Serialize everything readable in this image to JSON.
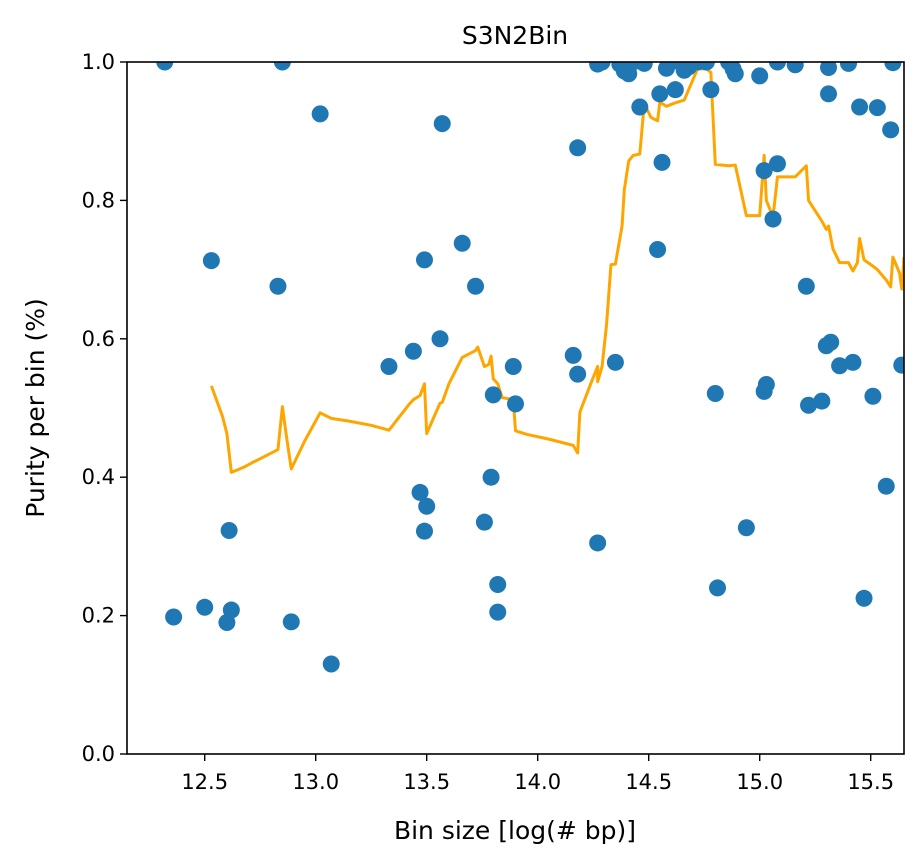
{
  "chart_data": {
    "type": "scatter",
    "title": "S3N2Bin",
    "xlabel": "Bin size [log(# bp)]",
    "ylabel": "Purity per bin (%)",
    "xlim": [
      12.15,
      15.65
    ],
    "ylim": [
      0.0,
      1.0
    ],
    "xticks": [
      12.5,
      13.0,
      13.5,
      14.0,
      14.5,
      15.0,
      15.5
    ],
    "xtick_labels": [
      "12.5",
      "13.0",
      "13.5",
      "14.0",
      "14.5",
      "15.0",
      "15.5"
    ],
    "yticks": [
      0.0,
      0.2,
      0.4,
      0.6,
      0.8,
      1.0
    ],
    "ytick_labels": [
      "0.0",
      "0.2",
      "0.4",
      "0.6",
      "0.8",
      "1.0"
    ],
    "grid": false,
    "colors": {
      "points": "#1f77b4",
      "line": "#ffa500"
    },
    "series": [
      {
        "kind": "scatter",
        "points": [
          [
            12.32,
            1.0
          ],
          [
            12.36,
            0.198
          ],
          [
            12.5,
            0.212
          ],
          [
            12.53,
            0.713
          ],
          [
            12.6,
            0.19
          ],
          [
            12.61,
            0.323
          ],
          [
            12.62,
            0.208
          ],
          [
            12.83,
            0.676
          ],
          [
            12.85,
            1.0
          ],
          [
            12.89,
            0.191
          ],
          [
            13.02,
            0.925
          ],
          [
            13.07,
            0.13
          ],
          [
            13.33,
            0.56
          ],
          [
            13.44,
            0.582
          ],
          [
            13.47,
            0.378
          ],
          [
            13.49,
            0.322
          ],
          [
            13.49,
            0.714
          ],
          [
            13.5,
            0.358
          ],
          [
            13.56,
            0.6
          ],
          [
            13.57,
            0.911
          ],
          [
            13.66,
            0.738
          ],
          [
            13.72,
            0.676
          ],
          [
            13.76,
            0.335
          ],
          [
            13.79,
            0.4
          ],
          [
            13.8,
            0.519
          ],
          [
            13.82,
            0.245
          ],
          [
            13.82,
            0.205
          ],
          [
            13.89,
            0.56
          ],
          [
            13.9,
            0.506
          ],
          [
            14.16,
            0.576
          ],
          [
            14.18,
            0.549
          ],
          [
            14.18,
            0.876
          ],
          [
            14.27,
            0.305
          ],
          [
            14.27,
            0.997
          ],
          [
            14.29,
            1.0
          ],
          [
            14.35,
            0.566
          ],
          [
            14.37,
            0.997
          ],
          [
            14.39,
            0.987
          ],
          [
            14.41,
            0.983
          ],
          [
            14.43,
            1.0
          ],
          [
            14.46,
            0.935
          ],
          [
            14.48,
            0.998
          ],
          [
            14.54,
            0.729
          ],
          [
            14.55,
            0.954
          ],
          [
            14.56,
            0.855
          ],
          [
            14.58,
            0.991
          ],
          [
            14.62,
            0.96
          ],
          [
            14.64,
            1.0
          ],
          [
            14.66,
            0.988
          ],
          [
            14.68,
            0.993
          ],
          [
            14.72,
            1.0
          ],
          [
            14.76,
            1.0
          ],
          [
            14.78,
            0.96
          ],
          [
            14.8,
            0.521
          ],
          [
            14.81,
            0.24
          ],
          [
            14.86,
            1.0
          ],
          [
            14.88,
            0.99
          ],
          [
            14.89,
            0.983
          ],
          [
            14.94,
            0.327
          ],
          [
            15.0,
            0.98
          ],
          [
            15.02,
            0.843
          ],
          [
            15.02,
            0.524
          ],
          [
            15.03,
            0.534
          ],
          [
            15.06,
            0.773
          ],
          [
            15.08,
            0.853
          ],
          [
            15.08,
            1.0
          ],
          [
            15.16,
            0.996
          ],
          [
            15.21,
            0.676
          ],
          [
            15.22,
            0.504
          ],
          [
            15.28,
            0.51
          ],
          [
            15.3,
            0.59
          ],
          [
            15.31,
            0.992
          ],
          [
            15.31,
            0.954
          ],
          [
            15.32,
            0.595
          ],
          [
            15.36,
            0.561
          ],
          [
            15.4,
            0.998
          ],
          [
            15.42,
            0.566
          ],
          [
            15.45,
            0.935
          ],
          [
            15.47,
            0.225
          ],
          [
            15.51,
            0.517
          ],
          [
            15.53,
            0.934
          ],
          [
            15.57,
            0.387
          ],
          [
            15.59,
            0.902
          ],
          [
            15.6,
            0.999
          ],
          [
            15.64,
            0.562
          ]
        ]
      },
      {
        "kind": "line",
        "points": [
          [
            12.53,
            0.532
          ],
          [
            12.58,
            0.488
          ],
          [
            12.6,
            0.463
          ],
          [
            12.62,
            0.407
          ],
          [
            12.65,
            0.411
          ],
          [
            12.68,
            0.415
          ],
          [
            12.72,
            0.422
          ],
          [
            12.77,
            0.43
          ],
          [
            12.83,
            0.44
          ],
          [
            12.85,
            0.502
          ],
          [
            12.87,
            0.455
          ],
          [
            12.89,
            0.412
          ],
          [
            12.95,
            0.452
          ],
          [
            13.02,
            0.493
          ],
          [
            13.07,
            0.485
          ],
          [
            13.15,
            0.481
          ],
          [
            13.25,
            0.475
          ],
          [
            13.33,
            0.468
          ],
          [
            13.42,
            0.505
          ],
          [
            13.44,
            0.512
          ],
          [
            13.47,
            0.518
          ],
          [
            13.49,
            0.535
          ],
          [
            13.5,
            0.463
          ],
          [
            13.53,
            0.485
          ],
          [
            13.56,
            0.507
          ],
          [
            13.57,
            0.508
          ],
          [
            13.6,
            0.535
          ],
          [
            13.66,
            0.573
          ],
          [
            13.72,
            0.583
          ],
          [
            13.73,
            0.588
          ],
          [
            13.76,
            0.56
          ],
          [
            13.78,
            0.563
          ],
          [
            13.79,
            0.575
          ],
          [
            13.8,
            0.542
          ],
          [
            13.82,
            0.535
          ],
          [
            13.84,
            0.515
          ],
          [
            13.89,
            0.512
          ],
          [
            13.9,
            0.467
          ],
          [
            13.95,
            0.462
          ],
          [
            14.05,
            0.455
          ],
          [
            14.16,
            0.446
          ],
          [
            14.18,
            0.435
          ],
          [
            14.19,
            0.494
          ],
          [
            14.24,
            0.536
          ],
          [
            14.27,
            0.56
          ],
          [
            14.27,
            0.538
          ],
          [
            14.29,
            0.56
          ],
          [
            14.31,
            0.62
          ],
          [
            14.33,
            0.707
          ],
          [
            14.35,
            0.708
          ],
          [
            14.38,
            0.763
          ],
          [
            14.39,
            0.815
          ],
          [
            14.41,
            0.857
          ],
          [
            14.43,
            0.865
          ],
          [
            14.46,
            0.867
          ],
          [
            14.48,
            0.94
          ],
          [
            14.51,
            0.92
          ],
          [
            14.54,
            0.915
          ],
          [
            14.55,
            0.942
          ],
          [
            14.58,
            0.936
          ],
          [
            14.62,
            0.941
          ],
          [
            14.66,
            0.945
          ],
          [
            14.68,
            0.96
          ],
          [
            14.72,
            0.99
          ],
          [
            14.76,
            0.99
          ],
          [
            14.78,
            0.985
          ],
          [
            14.8,
            0.852
          ],
          [
            14.86,
            0.85
          ],
          [
            14.89,
            0.851
          ],
          [
            14.94,
            0.778
          ],
          [
            14.97,
            0.778
          ],
          [
            15.0,
            0.778
          ],
          [
            15.02,
            0.865
          ],
          [
            15.03,
            0.8
          ],
          [
            15.06,
            0.776
          ],
          [
            15.08,
            0.834
          ],
          [
            15.16,
            0.834
          ],
          [
            15.21,
            0.85
          ],
          [
            15.22,
            0.8
          ],
          [
            15.28,
            0.77
          ],
          [
            15.3,
            0.758
          ],
          [
            15.31,
            0.763
          ],
          [
            15.33,
            0.73
          ],
          [
            15.36,
            0.71
          ],
          [
            15.4,
            0.71
          ],
          [
            15.42,
            0.698
          ],
          [
            15.44,
            0.71
          ],
          [
            15.45,
            0.745
          ],
          [
            15.47,
            0.714
          ],
          [
            15.51,
            0.705
          ],
          [
            15.53,
            0.7
          ],
          [
            15.57,
            0.685
          ],
          [
            15.59,
            0.675
          ],
          [
            15.6,
            0.718
          ],
          [
            15.63,
            0.695
          ],
          [
            15.64,
            0.672
          ],
          [
            15.65,
            0.718
          ]
        ]
      }
    ]
  }
}
